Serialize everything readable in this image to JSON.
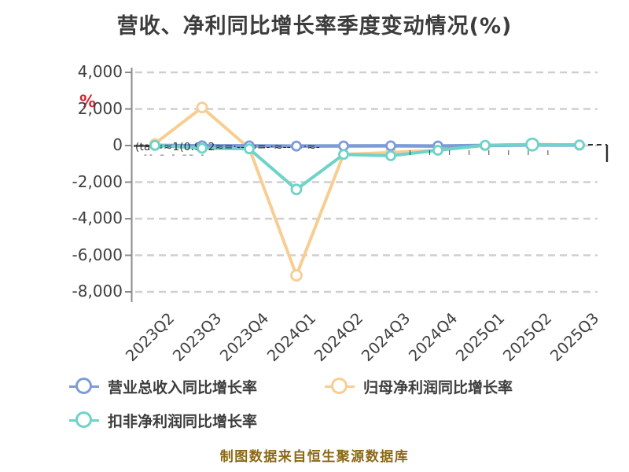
{
  "title": "营收、净利同比增长率季度变动情况(%)",
  "y_axis_unit_mark": "%",
  "footer": "制图数据来自恒生聚源数据库",
  "colors": {
    "background": "#ffffff",
    "title": "#3c3c3c",
    "axis": "#8a8a8a",
    "gridline": "#cfcfcf",
    "tick_label": "#3f3f3f",
    "footer": "#8B6914",
    "unit_mark": "#D9232E",
    "legend_label": "#3d3d3d",
    "marker_fill": "#ffffff",
    "scrawl": "#222222"
  },
  "chart_data": {
    "type": "line",
    "title": "营收、净利同比增长率季度变动情况(%)",
    "categories": [
      "2023Q2",
      "2023Q3",
      "2023Q4",
      "2024Q1",
      "2024Q2",
      "2024Q3",
      "2024Q4",
      "2025Q1",
      "2025Q2",
      "2025Q3"
    ],
    "series": [
      {
        "name": "营业总收入同比增长率",
        "color": "#7D9CD6",
        "values": [
          5,
          -10,
          -15,
          -30,
          -20,
          -15,
          -25,
          5,
          30,
          20
        ]
      },
      {
        "name": "归母净利润同比增长率",
        "color": "#F8CD92",
        "values": [
          100,
          2080,
          -150,
          -7100,
          -480,
          -380,
          -250,
          10,
          60,
          30
        ]
      },
      {
        "name": "扣非净利润同比增长率",
        "color": "#6ED3C8",
        "values": [
          10,
          -150,
          -180,
          -2400,
          -490,
          -560,
          -260,
          15,
          55,
          30
        ]
      }
    ],
    "ylim": [
      -8000,
      4000
    ],
    "yticks": [
      4000,
      2000,
      0,
      -2000,
      -4000,
      -6000,
      -8000
    ],
    "ytick_labels": [
      "4,000",
      "2,000",
      "0",
      "-2,000",
      "-4,000",
      "-6,000",
      "-8,000"
    ],
    "x_label_rotation_deg": -45,
    "grid": "horizontal-dashed",
    "legend_position": "bottom-left"
  },
  "artifacts": {
    "zero_line_scrawl": "(ta-=≈1(0.992≈=·--·≈=-·≈--·=·≈-",
    "zero_line_dashes": "-- – - –– -",
    "zero_line_right_ticks": "ıııııııı",
    "right_leader_line": "dashed-elbow"
  }
}
